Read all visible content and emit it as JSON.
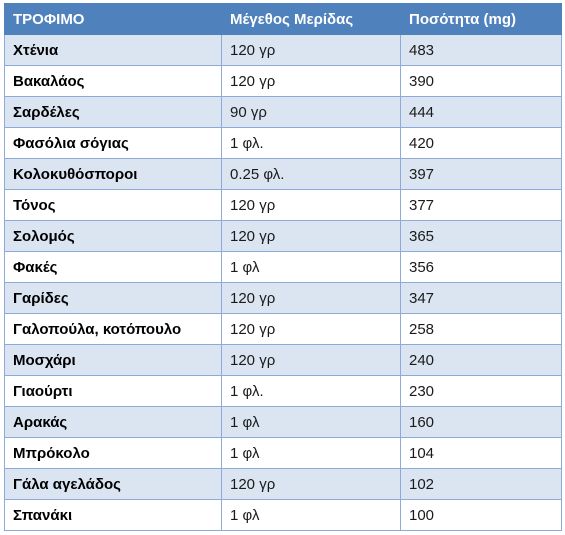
{
  "table": {
    "headers": [
      "ΤΡΟΦΙΜΟ",
      "Μέγεθος Μερίδας",
      "Ποσότητα (mg)"
    ],
    "rows": [
      [
        "Χτένια",
        "120 γρ",
        "483"
      ],
      [
        "Βακαλάος",
        "120 γρ",
        "390"
      ],
      [
        "Σαρδέλες",
        "90 γρ",
        "444"
      ],
      [
        "Φασόλια σόγιας",
        "1 φλ.",
        "420"
      ],
      [
        "Κολοκυθόσποροι",
        "0.25 φλ.",
        "397"
      ],
      [
        "Τόνος",
        "120 γρ",
        "377"
      ],
      [
        "Σολομός",
        "120 γρ",
        "365"
      ],
      [
        "Φακές",
        "1 φλ",
        "356"
      ],
      [
        "Γαρίδες",
        "120 γρ",
        "347"
      ],
      [
        "Γαλοπούλα, κοτόπουλο",
        "120 γρ",
        "258"
      ],
      [
        "Μοσχάρι",
        "120 γρ",
        "240"
      ],
      [
        "Γιαούρτι",
        "1 φλ.",
        "230"
      ],
      [
        "Αρακάς",
        "1 φλ",
        "160"
      ],
      [
        "Μπρόκολο",
        "1 φλ",
        "104"
      ],
      [
        "Γάλα αγελάδος",
        "120 γρ",
        "102"
      ],
      [
        "Σπανάκι",
        "1 φλ",
        "100"
      ]
    ]
  },
  "colors": {
    "header_bg": "#4f81bd",
    "stripe_bg": "#dbe5f1",
    "border": "#8eaadb"
  }
}
